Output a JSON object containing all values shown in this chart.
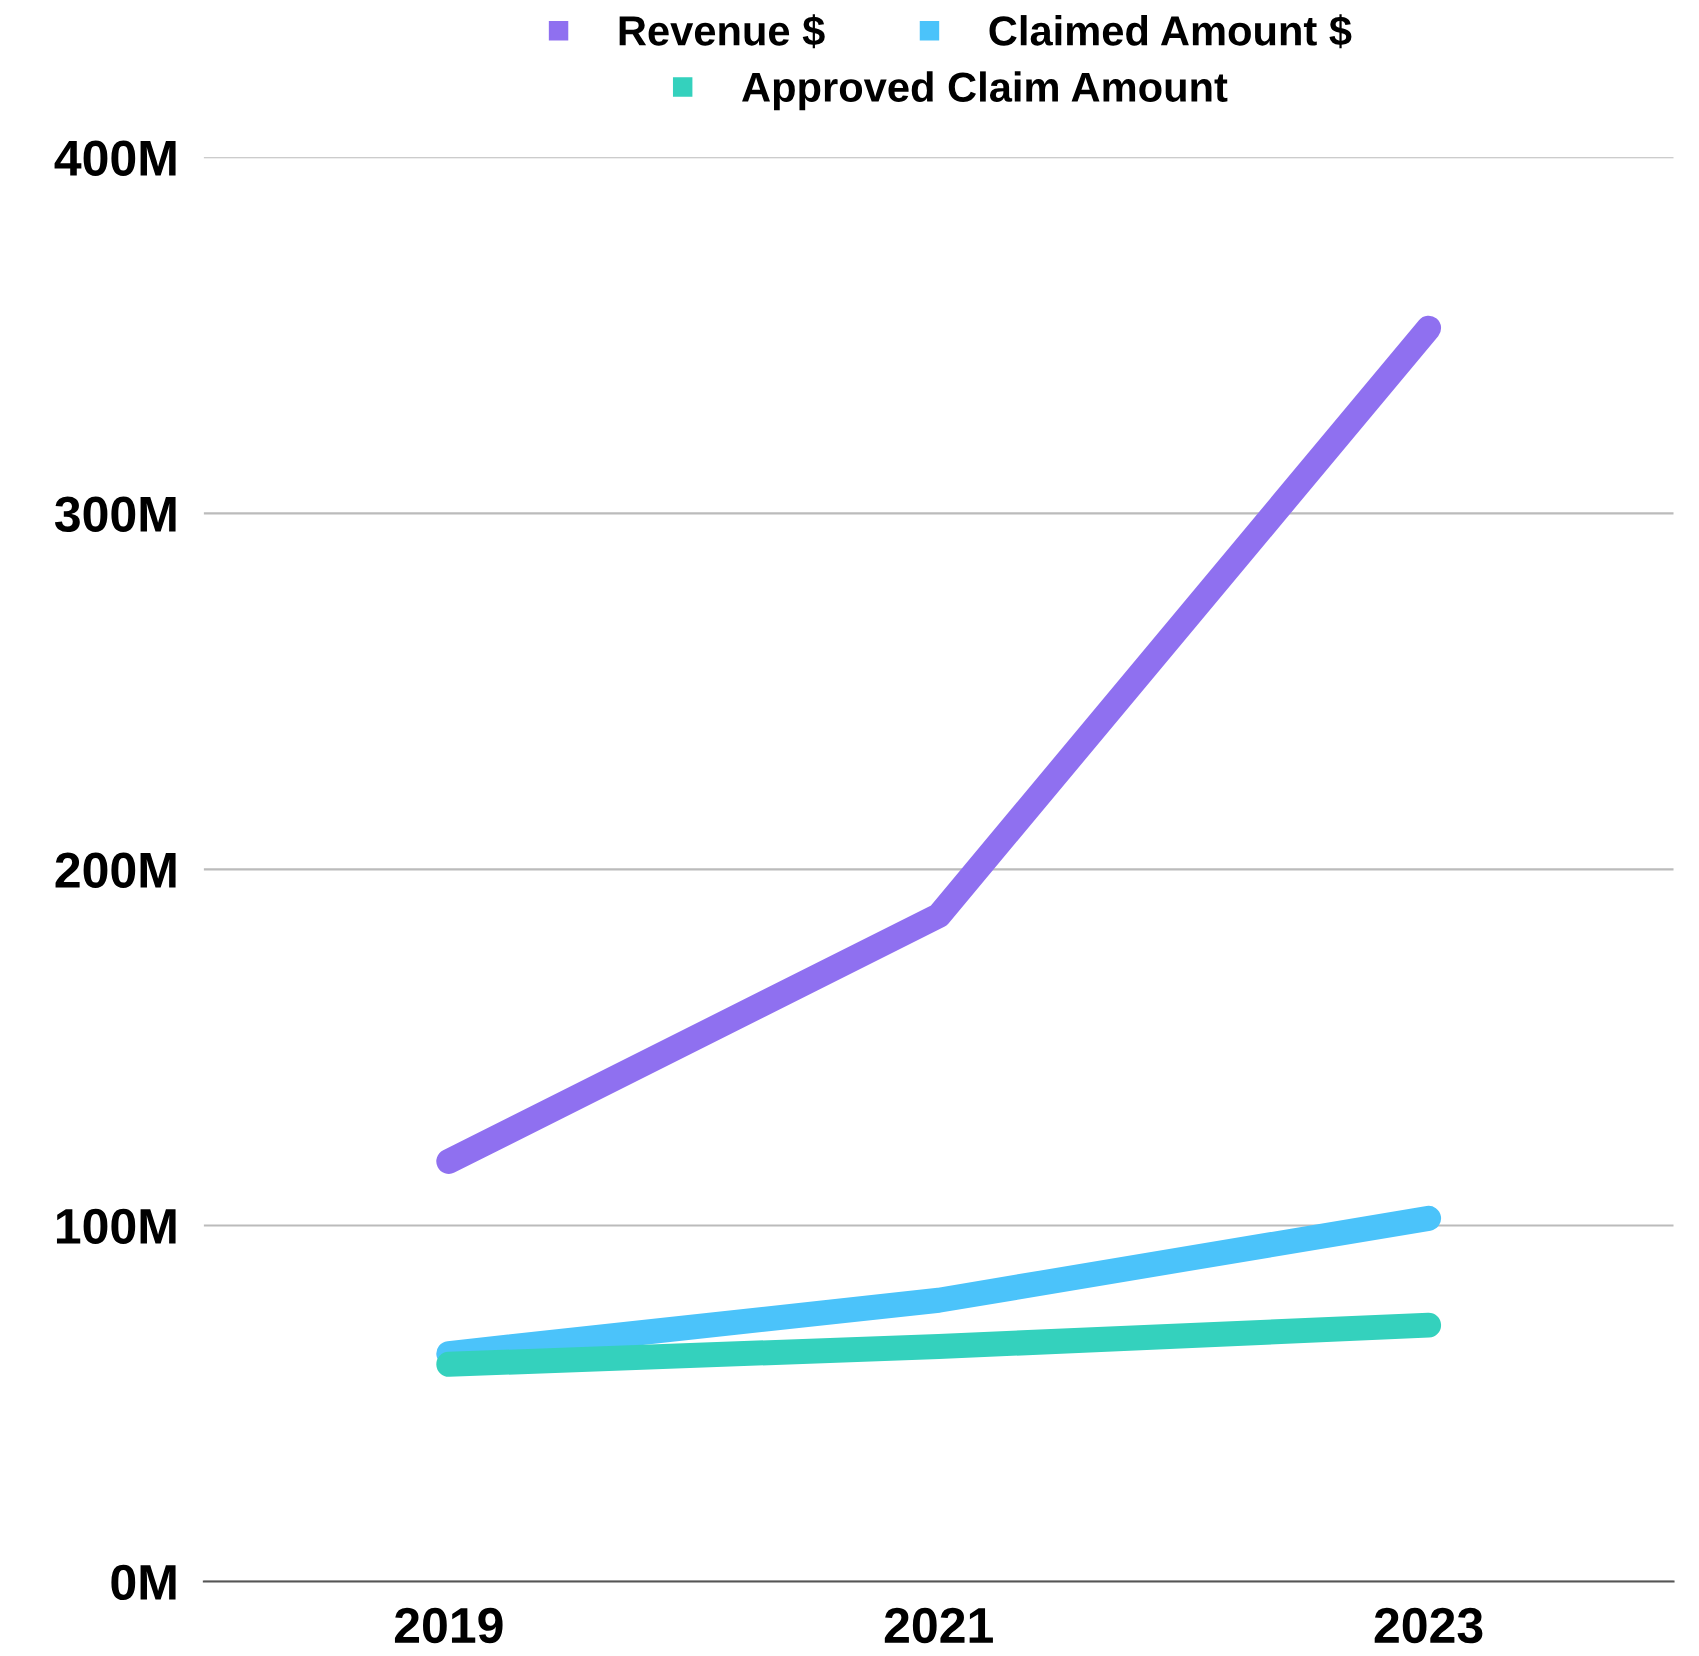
{
  "chart_data": {
    "type": "line",
    "categories": [
      "2019",
      "2021",
      "2023"
    ],
    "series": [
      {
        "name": "Revenue $",
        "color": "#8f70f0",
        "values": [
          118,
          187,
          352
        ]
      },
      {
        "name": "Claimed Amount $",
        "color": "#4bc3fa",
        "values": [
          64,
          79,
          102
        ]
      },
      {
        "name": "Approved Claim Amount",
        "color": "#34d1bd",
        "values": [
          61,
          66,
          72
        ]
      }
    ],
    "ylim": [
      0,
      400
    ],
    "yticks": [
      {
        "value": 0,
        "label": "0M"
      },
      {
        "value": 100,
        "label": "100M"
      },
      {
        "value": 200,
        "label": "200M"
      },
      {
        "value": 300,
        "label": "300M"
      },
      {
        "value": 400,
        "label": "400M"
      }
    ],
    "grid": "y",
    "legend": "top",
    "line_style": "solid"
  }
}
